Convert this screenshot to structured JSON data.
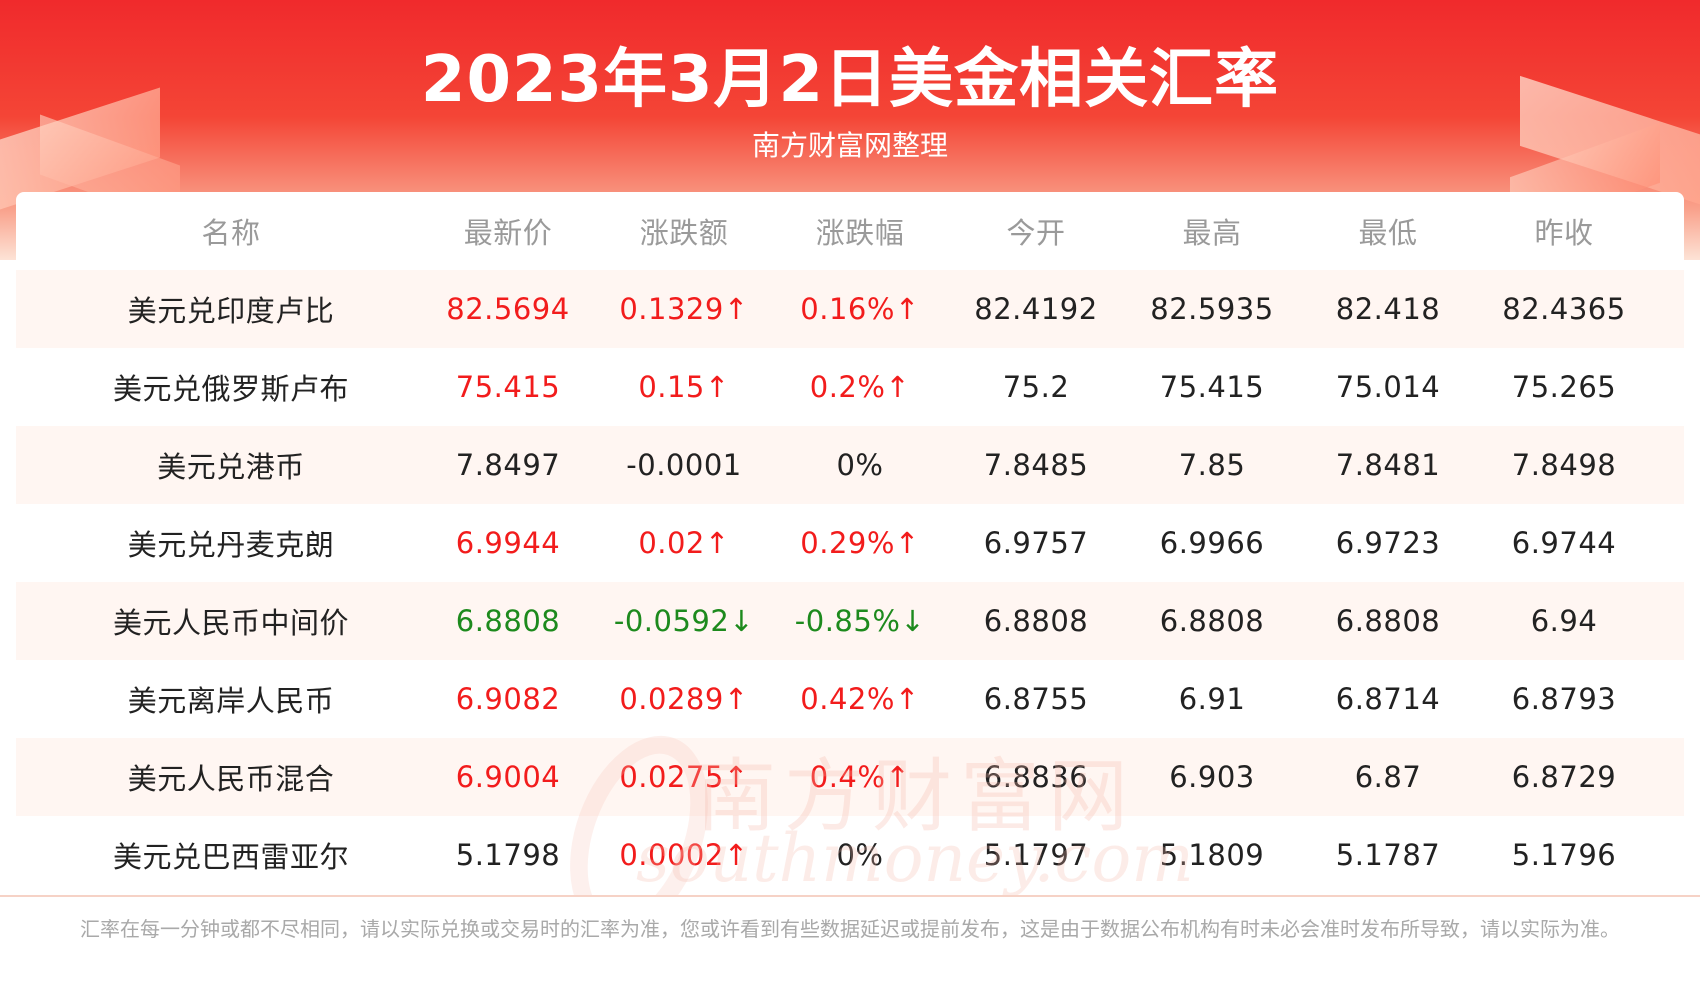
{
  "header": {
    "title": "2023年3月2日美金相关汇率",
    "subtitle": "南方财富网整理"
  },
  "table": {
    "columns": [
      "名称",
      "最新价",
      "涨跌额",
      "涨跌幅",
      "今开",
      "最高",
      "最低",
      "昨收"
    ],
    "rows": [
      [
        "美元兑印度卢比",
        "82.5694",
        "0.1329↑",
        "0.16%↑",
        "82.4192",
        "82.5935",
        "82.418",
        "82.4365"
      ],
      [
        "美元兑俄罗斯卢布",
        "75.415",
        "0.15↑",
        "0.2%↑",
        "75.2",
        "75.415",
        "75.014",
        "75.265"
      ],
      [
        "美元兑港币",
        "7.8497",
        "-0.0001",
        "0%",
        "7.8485",
        "7.85",
        "7.8481",
        "7.8498"
      ],
      [
        "美元兑丹麦克朗",
        "6.9944",
        "0.02↑",
        "0.29%↑",
        "6.9757",
        "6.9966",
        "6.9723",
        "6.9744"
      ],
      [
        "美元人民币中间价",
        "6.8808",
        "-0.0592↓",
        "-0.85%↓",
        "6.8808",
        "6.8808",
        "6.8808",
        "6.94"
      ],
      [
        "美元离岸人民币",
        "6.9082",
        "0.0289↑",
        "0.42%↑",
        "6.8755",
        "6.91",
        "6.8714",
        "6.8793"
      ],
      [
        "美元人民币混合",
        "6.9004",
        "0.0275↑",
        "0.4%↑",
        "6.8836",
        "6.903",
        "6.87",
        "6.8729"
      ],
      [
        "美元兑巴西雷亚尔",
        "5.1798",
        "0.0002↑",
        "0%",
        "5.1797",
        "5.1809",
        "5.1787",
        "5.1796"
      ]
    ],
    "row_trend": [
      "up",
      "up",
      "flat",
      "up",
      "down",
      "up",
      "up",
      "flat"
    ]
  },
  "watermark": {
    "cn": "南方财富网",
    "en": "southmoney.com"
  },
  "footer": {
    "disclaimer": "汇率在每一分钟或都不尽相同，请以实际兑换或交易时的汇率为准，您或许看到有些数据延迟或提前发布，这是由于数据公布机构有时未必会准时发布所导致，请以实际为准。"
  },
  "colors": {
    "up": "#f21c1c",
    "down": "#1d8a1d",
    "neutral": "#222222",
    "header_red": "#f02a2c"
  }
}
